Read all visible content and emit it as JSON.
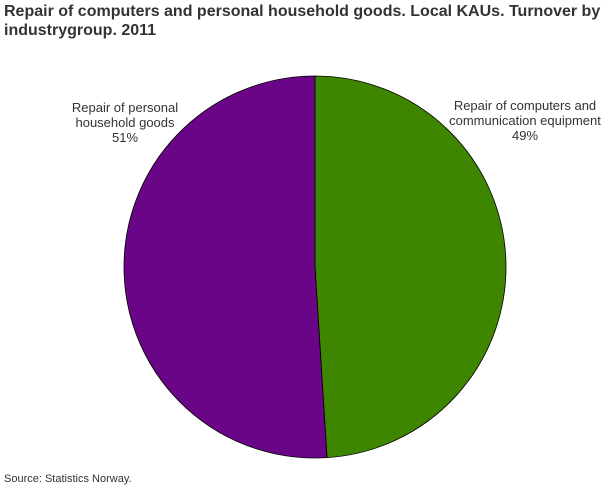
{
  "chart_data": {
    "type": "pie",
    "title": "Repair of computers and personal household goods. Local KAUs. Turnover by industrygroup. 2011",
    "source": "Source: Statistics Norway.",
    "categories": [
      "Repair of computers and communication equipment",
      "Repair of personal household goods"
    ],
    "values": [
      49,
      51
    ],
    "value_labels": [
      "49%",
      "51%"
    ],
    "colors": [
      "#3f8600",
      "#6a0587"
    ]
  }
}
